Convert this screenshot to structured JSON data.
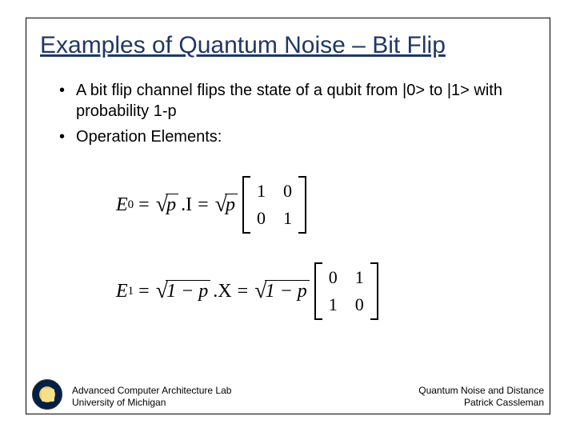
{
  "title": "Examples of Quantum Noise – Bit Flip",
  "bullets": [
    "A bit flip channel flips the state of a qubit from    |0> to |1> with probability 1-p",
    "Operation Elements:"
  ],
  "equations": {
    "e0": {
      "lhs_var": "E",
      "lhs_sub": "0",
      "sqrt1_arg": "p",
      "mid_factor": ".I",
      "sqrt2_arg": "p",
      "matrix": [
        [
          "1",
          "0"
        ],
        [
          "0",
          "1"
        ]
      ]
    },
    "e1": {
      "lhs_var": "E",
      "lhs_sub": "1",
      "sqrt1_arg": "1 − p",
      "mid_factor": ".X",
      "sqrt2_arg": "1 − p",
      "matrix": [
        [
          "0",
          "1"
        ],
        [
          "1",
          "0"
        ]
      ]
    }
  },
  "footer": {
    "left_line1": "Advanced Computer Architecture Lab",
    "left_line2": "University of Michigan",
    "right_line1": "Quantum Noise and Distance",
    "right_line2": "Patrick Cassleman"
  },
  "colors": {
    "title_color": "#1f3864",
    "text_color": "#000000",
    "border_color": "#000000",
    "background": "#ffffff"
  },
  "typography": {
    "title_fontsize": 30,
    "body_fontsize": 20,
    "equation_fontsize": 24,
    "footer_fontsize": 12
  }
}
